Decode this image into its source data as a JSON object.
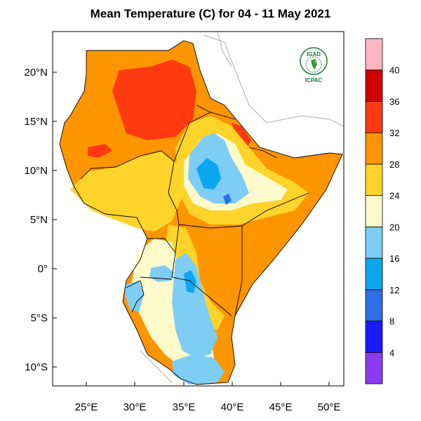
{
  "title": "Mean Temperature (C) for 04 - 11 May 2021",
  "map": {
    "lat_ticks": [
      "20°N",
      "15°N",
      "10°N",
      "5°N",
      "0°",
      "5°S",
      "10°S"
    ],
    "lon_ticks": [
      "25°E",
      "30°E",
      "35°E",
      "40°E",
      "45°E",
      "50°E"
    ]
  },
  "colorbar": {
    "labels": [
      "4",
      "8",
      "12",
      "16",
      "20",
      "24",
      "28",
      "32",
      "36",
      "40"
    ],
    "colors": [
      "#8b3cf0",
      "#1a1aff",
      "#2e6ee6",
      "#0aa6f0",
      "#7dcdf5",
      "#fffacc",
      "#ffd42a",
      "#ff9500",
      "#ff3a10",
      "#d00000",
      "#ffb6c1"
    ]
  },
  "logo": {
    "top": "IGAD",
    "bottom": "ICPAC"
  },
  "colors": {
    "gray_border": "#999999",
    "country_border": "#000000"
  }
}
